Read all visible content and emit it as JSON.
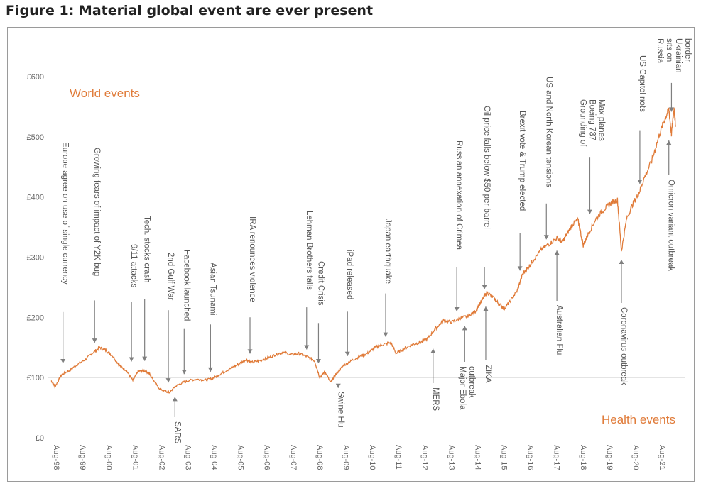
{
  "figure_title": "Figure 1:  Material global event are ever present",
  "chart_data": {
    "type": "line",
    "title": "Figure 1:  Material global event are ever present",
    "xlabel": "",
    "ylabel": "",
    "ylim": [
      0,
      600
    ],
    "y_ticks": [
      "£0",
      "£100",
      "£200",
      "£300",
      "£400",
      "£500",
      "£600"
    ],
    "x_ticks": [
      "Aug-98",
      "Aug-99",
      "Aug-00",
      "Aug-01",
      "Aug-02",
      "Aug-03",
      "Aug-04",
      "Aug-05",
      "Aug-06",
      "Aug-07",
      "Aug-08",
      "Aug-09",
      "Aug-10",
      "Aug-11",
      "Aug-12",
      "Aug-13",
      "Aug-14",
      "Aug-15",
      "Aug-16",
      "Aug-17",
      "Aug-18",
      "Aug-19",
      "Aug-20",
      "Aug-21"
    ],
    "reference_line": 100,
    "grid": false,
    "line_color": "#e07b39",
    "series": [
      {
        "points": [
          [
            1998.6,
            95
          ],
          [
            1998.75,
            85
          ],
          [
            1999.0,
            105
          ],
          [
            1999.3,
            112
          ],
          [
            1999.6,
            122
          ],
          [
            1999.9,
            130
          ],
          [
            2000.2,
            142
          ],
          [
            2000.45,
            150
          ],
          [
            2000.7,
            145
          ],
          [
            2000.95,
            135
          ],
          [
            2001.2,
            120
          ],
          [
            2001.45,
            112
          ],
          [
            2001.7,
            95
          ],
          [
            2001.9,
            110
          ],
          [
            2002.1,
            112
          ],
          [
            2002.3,
            108
          ],
          [
            2002.5,
            95
          ],
          [
            2002.7,
            82
          ],
          [
            2002.9,
            78
          ],
          [
            2003.1,
            75
          ],
          [
            2003.3,
            85
          ],
          [
            2003.6,
            92
          ],
          [
            2003.9,
            96
          ],
          [
            2004.2,
            97
          ],
          [
            2004.5,
            96
          ],
          [
            2004.8,
            100
          ],
          [
            2005.1,
            108
          ],
          [
            2005.4,
            115
          ],
          [
            2005.7,
            122
          ],
          [
            2006.0,
            130
          ],
          [
            2006.2,
            125
          ],
          [
            2006.5,
            128
          ],
          [
            2006.8,
            132
          ],
          [
            2007.1,
            138
          ],
          [
            2007.4,
            142
          ],
          [
            2007.7,
            138
          ],
          [
            2008.0,
            140
          ],
          [
            2008.3,
            135
          ],
          [
            2008.6,
            128
          ],
          [
            2008.8,
            100
          ],
          [
            2009.0,
            110
          ],
          [
            2009.2,
            92
          ],
          [
            2009.4,
            105
          ],
          [
            2009.7,
            120
          ],
          [
            2010.0,
            128
          ],
          [
            2010.3,
            135
          ],
          [
            2010.6,
            140
          ],
          [
            2010.9,
            150
          ],
          [
            2011.2,
            155
          ],
          [
            2011.5,
            158
          ],
          [
            2011.7,
            140
          ],
          [
            2012.0,
            148
          ],
          [
            2012.3,
            155
          ],
          [
            2012.6,
            158
          ],
          [
            2012.9,
            165
          ],
          [
            2013.2,
            182
          ],
          [
            2013.5,
            195
          ],
          [
            2013.8,
            192
          ],
          [
            2014.1,
            198
          ],
          [
            2014.4,
            202
          ],
          [
            2014.7,
            210
          ],
          [
            2014.95,
            228
          ],
          [
            2015.15,
            242
          ],
          [
            2015.4,
            232
          ],
          [
            2015.6,
            222
          ],
          [
            2015.8,
            215
          ],
          [
            2016.0,
            225
          ],
          [
            2016.3,
            245
          ],
          [
            2016.5,
            272
          ],
          [
            2016.7,
            282
          ],
          [
            2016.9,
            295
          ],
          [
            2017.2,
            312
          ],
          [
            2017.5,
            322
          ],
          [
            2017.8,
            332
          ],
          [
            2018.0,
            325
          ],
          [
            2018.2,
            340
          ],
          [
            2018.4,
            355
          ],
          [
            2018.6,
            362
          ],
          [
            2018.8,
            320
          ],
          [
            2019.0,
            340
          ],
          [
            2019.3,
            365
          ],
          [
            2019.6,
            380
          ],
          [
            2019.85,
            390
          ],
          [
            2020.1,
            395
          ],
          [
            2020.25,
            310
          ],
          [
            2020.45,
            365
          ],
          [
            2020.7,
            390
          ],
          [
            2020.9,
            405
          ],
          [
            2021.1,
            430
          ],
          [
            2021.4,
            460
          ],
          [
            2021.7,
            505
          ],
          [
            2021.9,
            530
          ],
          [
            2022.05,
            545
          ],
          [
            2022.15,
            505
          ],
          [
            2022.25,
            548
          ],
          [
            2022.3,
            520
          ]
        ]
      }
    ],
    "world_events_label": "World events",
    "health_events_label": "Health events",
    "world_events": [
      {
        "label": "Europe agree on use of single currency",
        "x": 1999.05,
        "y": 112
      },
      {
        "label": "Growing fears of impact of Y2K bug",
        "x": 2000.25,
        "y": 146
      },
      {
        "label": "9/11 attacks",
        "x": 2001.65,
        "y": 115
      },
      {
        "label": "Tech. stocks crash",
        "x": 2002.15,
        "y": 116
      },
      {
        "label": "2nd Gulf War",
        "x": 2003.05,
        "y": 80
      },
      {
        "label": "Facebook launched",
        "x": 2003.65,
        "y": 94
      },
      {
        "label": "Asian Tsunami",
        "x": 2004.65,
        "y": 98
      },
      {
        "label": "IRA renounces violence",
        "x": 2006.15,
        "y": 128
      },
      {
        "label": "Lehman Brothers falls",
        "x": 2008.3,
        "y": 135
      },
      {
        "label": "Credit Crisis",
        "x": 2008.75,
        "y": 112
      },
      {
        "label": "iPad released",
        "x": 2009.85,
        "y": 124
      },
      {
        "label": "Japan earthquake",
        "x": 2011.3,
        "y": 156
      },
      {
        "label": "Russian annexation of Crimea",
        "x": 2014.0,
        "y": 198
      },
      {
        "label": "Oil price falls below $50 per barrel",
        "x": 2015.05,
        "y": 235
      },
      {
        "label": "Brexit vote & Trump elected",
        "x": 2016.4,
        "y": 266
      },
      {
        "label": "US and North Korean tensions",
        "x": 2017.4,
        "y": 318
      },
      {
        "label": "Grounding of Boeing 737 Max planes",
        "x": 2019.05,
        "y": 360
      },
      {
        "label": "US Capitol riots",
        "x": 2020.95,
        "y": 410
      },
      {
        "label": "Russia sits on Ukrainian border",
        "x": 2022.15,
        "y": 530
      }
    ],
    "health_events": [
      {
        "label": "SARS",
        "x": 2003.3,
        "y": 82
      },
      {
        "label": "Swine Flu",
        "x": 2009.5,
        "y": 97
      },
      {
        "label": "MERS",
        "x": 2013.1,
        "y": 162
      },
      {
        "label": "Major Ebola outbreak",
        "x": 2014.3,
        "y": 200
      },
      {
        "label": "ZIKA",
        "x": 2015.1,
        "y": 232
      },
      {
        "label": "Australian Flu",
        "x": 2017.8,
        "y": 325
      },
      {
        "label": "Coronavirus outbreak",
        "x": 2020.25,
        "y": 310
      },
      {
        "label": "Omicron variant outbreak",
        "x": 2022.05,
        "y": 508
      }
    ]
  }
}
